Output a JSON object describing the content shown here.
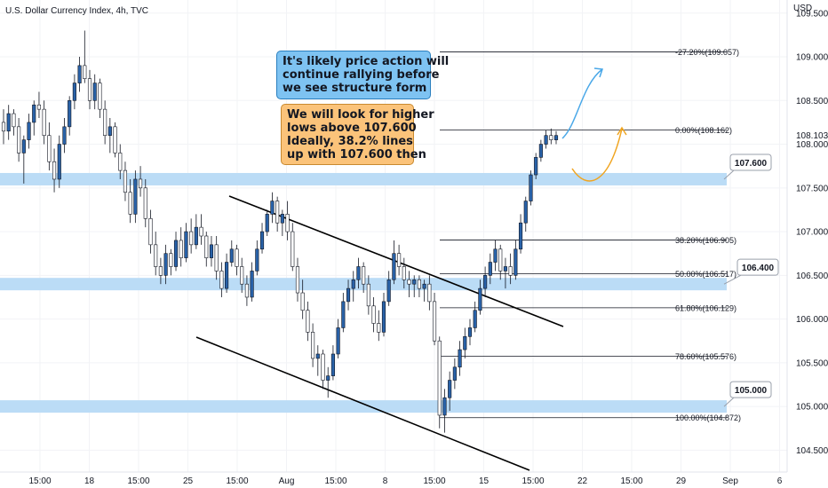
{
  "header": {
    "title": "U.S. Dollar Currency Index, 4h, TVC",
    "currency": "USD"
  },
  "chart_data": {
    "type": "candlestick",
    "symbol": "U.S. Dollar Currency Index",
    "interval": "4h",
    "source": "TVC",
    "ylim": [
      104.25,
      109.65
    ],
    "y_ticks": [
      "109.500",
      "109.000",
      "108.500",
      "108.000",
      "107.500",
      "107.000",
      "106.500",
      "106.000",
      "105.500",
      "105.000",
      "104.500"
    ],
    "last_price": "108.103",
    "x_ticks": [
      "15:00",
      "18",
      "15:00",
      "25",
      "15:00",
      "Aug",
      "15:00",
      "8",
      "15:00",
      "15",
      "15:00",
      "22",
      "15:00",
      "29",
      "Sep",
      "6"
    ],
    "candles": [
      [
        108.25,
        108.4,
        108.0,
        108.15
      ],
      [
        108.15,
        108.45,
        108.05,
        108.35
      ],
      [
        108.35,
        108.4,
        108.1,
        108.2
      ],
      [
        108.2,
        108.3,
        107.8,
        107.9
      ],
      [
        107.9,
        108.1,
        107.55,
        108.05
      ],
      [
        108.05,
        108.35,
        107.95,
        108.25
      ],
      [
        108.25,
        108.5,
        108.1,
        108.45
      ],
      [
        108.45,
        108.6,
        108.3,
        108.4
      ],
      [
        108.4,
        108.5,
        108.0,
        108.1
      ],
      [
        108.1,
        108.25,
        107.7,
        107.8
      ],
      [
        107.8,
        107.95,
        107.45,
        107.6
      ],
      [
        107.6,
        108.1,
        107.5,
        108.0
      ],
      [
        108.0,
        108.3,
        107.9,
        108.2
      ],
      [
        108.2,
        108.55,
        108.1,
        108.5
      ],
      [
        108.5,
        108.8,
        108.4,
        108.7
      ],
      [
        108.7,
        109.0,
        108.6,
        108.9
      ],
      [
        108.9,
        109.3,
        108.7,
        108.75
      ],
      [
        108.75,
        108.85,
        108.4,
        108.5
      ],
      [
        108.5,
        108.8,
        108.4,
        108.7
      ],
      [
        108.7,
        108.75,
        108.3,
        108.4
      ],
      [
        108.4,
        108.5,
        108.0,
        108.1
      ],
      [
        108.1,
        108.3,
        107.9,
        108.2
      ],
      [
        108.2,
        108.25,
        107.85,
        107.9
      ],
      [
        107.9,
        108.0,
        107.6,
        107.7
      ],
      [
        107.7,
        107.8,
        107.35,
        107.45
      ],
      [
        107.45,
        107.6,
        107.1,
        107.2
      ],
      [
        107.2,
        107.7,
        107.1,
        107.6
      ],
      [
        107.6,
        107.75,
        107.4,
        107.5
      ],
      [
        107.5,
        107.6,
        107.05,
        107.15
      ],
      [
        107.15,
        107.25,
        106.75,
        106.85
      ],
      [
        106.85,
        107.0,
        106.5,
        106.6
      ],
      [
        106.6,
        106.7,
        106.4,
        106.5
      ],
      [
        106.5,
        106.85,
        106.4,
        106.75
      ],
      [
        106.75,
        106.8,
        106.5,
        106.6
      ],
      [
        106.6,
        107.0,
        106.55,
        106.9
      ],
      [
        106.9,
        107.05,
        106.6,
        106.7
      ],
      [
        106.7,
        107.1,
        106.65,
        107.0
      ],
      [
        107.0,
        107.15,
        106.75,
        106.85
      ],
      [
        106.85,
        107.2,
        106.8,
        107.05
      ],
      [
        107.05,
        107.2,
        106.85,
        106.95
      ],
      [
        106.95,
        107.0,
        106.6,
        106.7
      ],
      [
        106.7,
        106.95,
        106.6,
        106.85
      ],
      [
        106.85,
        106.95,
        106.45,
        106.55
      ],
      [
        106.55,
        106.65,
        106.25,
        106.35
      ],
      [
        106.35,
        106.75,
        106.3,
        106.65
      ],
      [
        106.65,
        106.9,
        106.6,
        106.8
      ],
      [
        106.8,
        106.85,
        106.5,
        106.6
      ],
      [
        106.6,
        106.7,
        106.3,
        106.4
      ],
      [
        106.4,
        106.5,
        106.15,
        106.25
      ],
      [
        106.25,
        106.65,
        106.2,
        106.55
      ],
      [
        106.55,
        106.9,
        106.5,
        106.8
      ],
      [
        106.8,
        107.1,
        106.75,
        107.0
      ],
      [
        107.0,
        107.25,
        106.95,
        107.2
      ],
      [
        107.2,
        107.45,
        107.1,
        107.35
      ],
      [
        107.35,
        107.4,
        107.0,
        107.1
      ],
      [
        107.1,
        107.25,
        106.95,
        107.2
      ],
      [
        107.2,
        107.35,
        106.9,
        107.0
      ],
      [
        107.0,
        107.1,
        106.55,
        106.6
      ],
      [
        106.6,
        106.7,
        106.2,
        106.3
      ],
      [
        106.3,
        106.45,
        106.0,
        106.1
      ],
      [
        106.1,
        106.2,
        105.75,
        105.85
      ],
      [
        105.85,
        105.95,
        105.45,
        105.55
      ],
      [
        105.55,
        105.7,
        105.35,
        105.6
      ],
      [
        105.6,
        105.65,
        105.2,
        105.3
      ],
      [
        105.3,
        105.45,
        105.1,
        105.35
      ],
      [
        105.35,
        105.7,
        105.3,
        105.6
      ],
      [
        105.6,
        106.0,
        105.55,
        105.9
      ],
      [
        105.9,
        106.3,
        105.85,
        106.2
      ],
      [
        106.2,
        106.45,
        106.1,
        106.35
      ],
      [
        106.35,
        106.55,
        106.2,
        106.45
      ],
      [
        106.45,
        106.7,
        106.35,
        106.6
      ],
      [
        106.6,
        106.65,
        106.3,
        106.4
      ],
      [
        106.4,
        106.5,
        106.05,
        106.15
      ],
      [
        106.15,
        106.25,
        105.85,
        105.95
      ],
      [
        105.95,
        106.1,
        105.75,
        105.85
      ],
      [
        105.85,
        106.3,
        105.8,
        106.2
      ],
      [
        106.2,
        106.55,
        106.15,
        106.45
      ],
      [
        106.45,
        106.9,
        106.4,
        106.75
      ],
      [
        106.75,
        106.85,
        106.5,
        106.6
      ],
      [
        106.6,
        106.7,
        106.35,
        106.45
      ],
      [
        106.45,
        106.55,
        106.25,
        106.4
      ],
      [
        106.4,
        106.5,
        106.25,
        106.45
      ],
      [
        106.45,
        106.5,
        106.25,
        106.35
      ],
      [
        106.35,
        106.45,
        106.2,
        106.4
      ],
      [
        106.4,
        106.5,
        106.1,
        106.2
      ],
      [
        106.2,
        106.3,
        105.7,
        105.75
      ],
      [
        105.75,
        105.8,
        104.75,
        104.9
      ],
      [
        104.9,
        105.2,
        104.7,
        105.1
      ],
      [
        105.1,
        105.4,
        104.95,
        105.3
      ],
      [
        105.3,
        105.55,
        105.2,
        105.45
      ],
      [
        105.45,
        105.75,
        105.35,
        105.65
      ],
      [
        105.65,
        105.9,
        105.55,
        105.8
      ],
      [
        105.8,
        106.0,
        105.7,
        105.9
      ],
      [
        105.9,
        106.2,
        105.85,
        106.1
      ],
      [
        106.1,
        106.45,
        106.05,
        106.35
      ],
      [
        106.35,
        106.6,
        106.25,
        106.5
      ],
      [
        106.5,
        106.75,
        106.4,
        106.65
      ],
      [
        106.65,
        106.9,
        106.55,
        106.8
      ],
      [
        106.8,
        106.85,
        106.45,
        106.55
      ],
      [
        106.55,
        106.7,
        106.35,
        106.6
      ],
      [
        106.6,
        106.75,
        106.4,
        106.5
      ],
      [
        106.5,
        106.9,
        106.45,
        106.8
      ],
      [
        106.8,
        107.2,
        106.75,
        107.1
      ],
      [
        107.1,
        107.4,
        107.0,
        107.35
      ],
      [
        107.35,
        107.7,
        107.3,
        107.65
      ],
      [
        107.65,
        107.9,
        107.6,
        107.85
      ],
      [
        107.85,
        108.05,
        107.8,
        108.0
      ],
      [
        108.0,
        108.16,
        107.95,
        108.1
      ],
      [
        108.1,
        108.18,
        108.0,
        108.05
      ],
      [
        108.05,
        108.15,
        108.0,
        108.1
      ]
    ],
    "fib_levels": [
      {
        "label": "-27.20%(109.057)",
        "price": 109.057
      },
      {
        "label": "0.00%(108.162)",
        "price": 108.162
      },
      {
        "label": "38.20%(106.905)",
        "price": 106.905
      },
      {
        "label": "50.00%(106.517)",
        "price": 106.517
      },
      {
        "label": "61.80%(106.129)",
        "price": 106.129
      },
      {
        "label": "78.60%(105.576)",
        "price": 105.576
      },
      {
        "label": "100.00%(104.872)",
        "price": 104.872
      }
    ],
    "zones": [
      {
        "label": "107.600",
        "price": 107.6
      },
      {
        "label": "106.400",
        "price": 106.4
      },
      {
        "label": "105.000",
        "price": 105.0
      }
    ],
    "annotations": [
      {
        "lines": [
          "It's likely price action will",
          "continue rallying before",
          "we see structure form"
        ],
        "color": "#7ec3f2"
      },
      {
        "lines": [
          "We will look for higher",
          "lows above 107.600",
          "Ideally, 38.2% lines",
          "up with 107.600 then"
        ],
        "color": "#fbc37a"
      }
    ],
    "colors": {
      "up": "#2962a8",
      "down": "#ffffff",
      "outline": "#131722",
      "zone": "#bbdcf6",
      "blue_arrow": "#4aa8e8",
      "orange_arrow": "#f0a521"
    }
  }
}
